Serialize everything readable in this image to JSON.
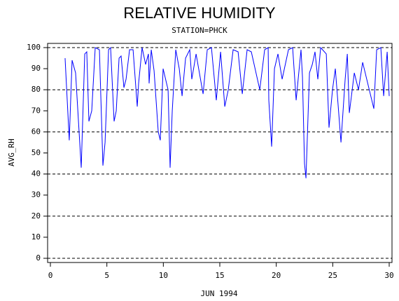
{
  "chart_data": {
    "type": "line",
    "title": "RELATIVE HUMIDITY",
    "subtitle": "STATION=PHCK",
    "x_label": "JUN 1994",
    "y_label": "AVG_RH",
    "xlim": [
      0,
      30
    ],
    "xticks": [
      0,
      5,
      10,
      15,
      20,
      25,
      30
    ],
    "ylim": [
      0,
      100
    ],
    "yticks": [
      0,
      10,
      20,
      30,
      40,
      50,
      60,
      70,
      80,
      90,
      100
    ],
    "grid_lines": [
      0,
      20,
      40,
      60,
      80,
      100
    ],
    "series": [
      {
        "color": "#0000ff",
        "x": [
          1.3,
          1.67,
          1.92,
          2.23,
          2.73,
          3.04,
          3.22,
          3.41,
          3.66,
          3.97,
          4.34,
          4.65,
          4.84,
          5.15,
          5.33,
          5.64,
          5.83,
          6.08,
          6.26,
          6.51,
          6.7,
          7.01,
          7.32,
          7.69,
          7.81,
          8.12,
          8.43,
          8.68,
          8.74,
          8.93,
          9.18,
          9.55,
          9.73,
          9.98,
          10.42,
          10.6,
          10.79,
          11.1,
          11.41,
          11.66,
          11.97,
          12.34,
          12.52,
          12.9,
          13.52,
          13.89,
          14.26,
          14.69,
          15.07,
          15.44,
          15.75,
          16.18,
          16.62,
          16.99,
          17.42,
          17.79,
          18.54,
          18.97,
          19.28,
          19.34,
          19.59,
          19.84,
          20.15,
          20.52,
          21.08,
          21.45,
          21.76,
          22.19,
          22.32,
          22.5,
          22.63,
          22.94,
          23.19,
          23.43,
          23.68,
          23.93,
          24.43,
          24.67,
          24.98,
          25.23,
          25.73,
          26.1,
          26.29,
          26.47,
          26.91,
          27.28,
          27.65,
          28.64,
          28.89,
          29.26,
          29.51,
          29.82,
          30.0
        ],
        "values": [
          95,
          56,
          94,
          88,
          43,
          97,
          98,
          65,
          70,
          100,
          99,
          44,
          55,
          99,
          100,
          65,
          70,
          95,
          96,
          81,
          85,
          99,
          99,
          72,
          83,
          100,
          92,
          97,
          83,
          99,
          89,
          60,
          56,
          90,
          80,
          43,
          70,
          99,
          90,
          77,
          95,
          99,
          85,
          97,
          78,
          99,
          100,
          75,
          98,
          72,
          80,
          99,
          98,
          78,
          99,
          98,
          80,
          99,
          100,
          75,
          53,
          90,
          97,
          85,
          99,
          100,
          75,
          99,
          86,
          45,
          38,
          88,
          92,
          98,
          85,
          100,
          97,
          62,
          80,
          90,
          55,
          85,
          97,
          69,
          88,
          80,
          93,
          71,
          99,
          100,
          77,
          98,
          77
        ]
      }
    ]
  }
}
